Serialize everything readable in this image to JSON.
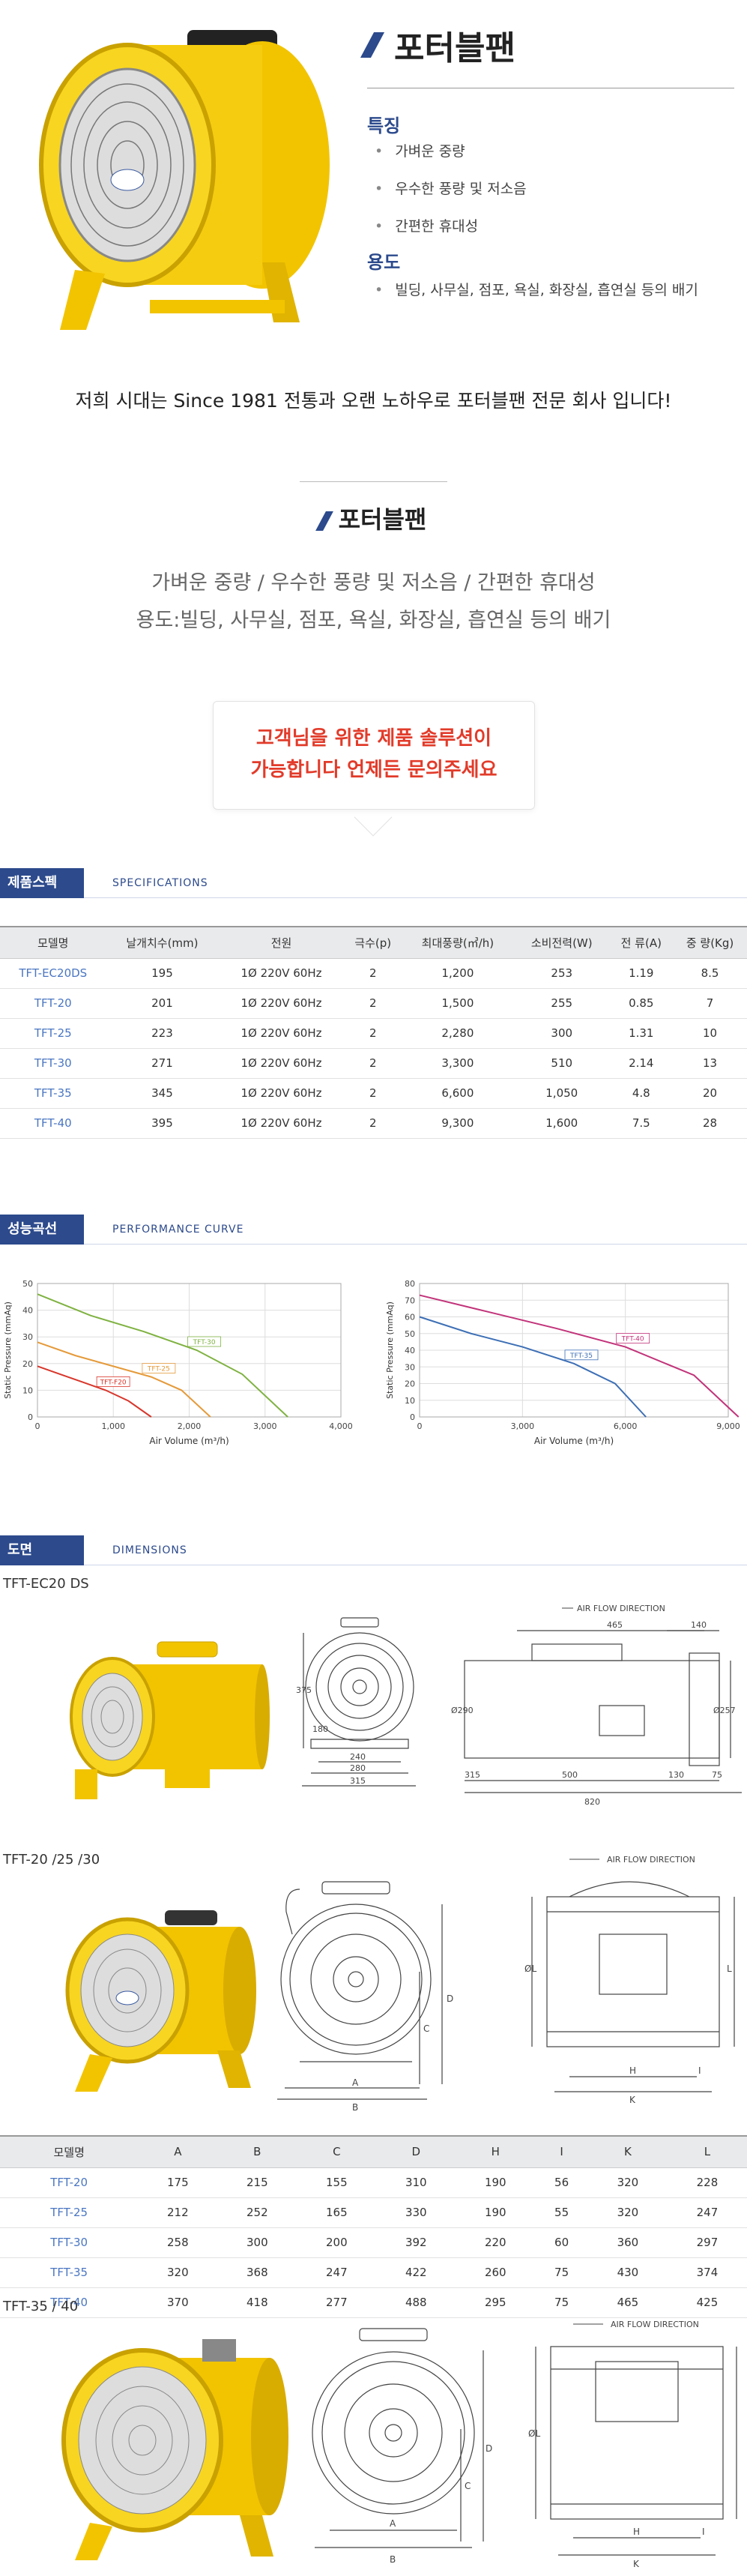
{
  "hero": {
    "title": "포터블팬",
    "features_heading": "특징",
    "features": [
      "가벼운 중량",
      "우수한 풍량 및 저소음",
      "간편한 휴대성"
    ],
    "uses_heading": "용도",
    "uses": [
      "빌딩, 사무실, 점포, 욕실, 화장실, 흡연실 등의 배기"
    ],
    "company_line": "저희 시대는  Since 1981 전통과 오랜 노하우로  포터블팬  전문 회사 입니다!"
  },
  "intro": {
    "title": "포터블팬",
    "line1": "가벼운 중량 / 우수한 풍량 및 저소음 / 간편한 휴대성",
    "line2": "용도:빌딩, 사무실, 점포, 욕실, 화장실, 흡연실 등의 배기",
    "callout1": "고객님을 위한 제품 솔루션이",
    "callout2": "가능합니다 언제든 문의주세요"
  },
  "specs": {
    "tag": "제품스펙",
    "en": "SPECIFICATIONS",
    "headers": [
      "모델명",
      "날개치수(mm)",
      "전원",
      "극수(p)",
      "최대풍량(㎥/h)",
      "소비전력(W)",
      "전 류(A)",
      "중 량(Kg)"
    ],
    "rows": [
      [
        "TFT-EC20DS",
        "195",
        "1Ø 220V 60Hz",
        "2",
        "1,200",
        "253",
        "1.19",
        "8.5"
      ],
      [
        "TFT-20",
        "201",
        "1Ø 220V 60Hz",
        "2",
        "1,500",
        "255",
        "0.85",
        "7"
      ],
      [
        "TFT-25",
        "223",
        "1Ø 220V 60Hz",
        "2",
        "2,280",
        "300",
        "1.31",
        "10"
      ],
      [
        "TFT-30",
        "271",
        "1Ø 220V 60Hz",
        "2",
        "3,300",
        "510",
        "2.14",
        "13"
      ],
      [
        "TFT-35",
        "345",
        "1Ø 220V 60Hz",
        "2",
        "6,600",
        "1,050",
        "4.8",
        "20"
      ],
      [
        "TFT-40",
        "395",
        "1Ø 220V 60Hz",
        "2",
        "9,300",
        "1,600",
        "7.5",
        "28"
      ]
    ]
  },
  "performance": {
    "tag": "성능곡선",
    "en": "PERFORMANCE CURVE"
  },
  "chart_data": [
    {
      "type": "line",
      "xlabel": "Air Volume (m³/h)",
      "ylabel": "Static Pressure (mmAq)",
      "xlim": [
        0,
        4000
      ],
      "ylim": [
        0,
        50
      ],
      "xticks": [
        "0",
        "1,000",
        "2,000",
        "3,000",
        "4,000"
      ],
      "yticks": [
        "0",
        "10",
        "20",
        "30",
        "40",
        "50"
      ],
      "grid": true,
      "series": [
        {
          "name": "TFT-F20",
          "color": "#d8362b",
          "x": [
            0,
            300,
            600,
            900,
            1200,
            1500
          ],
          "y": [
            19,
            16,
            13,
            10,
            6,
            0
          ]
        },
        {
          "name": "TFT-25",
          "color": "#e59a3a",
          "x": [
            0,
            500,
            1000,
            1500,
            1900,
            2280
          ],
          "y": [
            28,
            23,
            19,
            15,
            10,
            0
          ]
        },
        {
          "name": "TFT-30",
          "color": "#7fb241",
          "x": [
            0,
            700,
            1400,
            2100,
            2700,
            3300
          ],
          "y": [
            46,
            38,
            32,
            25,
            16,
            0
          ]
        }
      ]
    },
    {
      "type": "line",
      "xlabel": "Air Volume (m³/h)",
      "ylabel": "Static Pressure (mmAq)",
      "xlim": [
        0,
        9000
      ],
      "ylim": [
        0,
        80
      ],
      "xticks": [
        "0",
        "3,000",
        "6,000",
        "9,000"
      ],
      "yticks": [
        "0",
        "10",
        "20",
        "30",
        "40",
        "50",
        "60",
        "70",
        "80"
      ],
      "grid": true,
      "series": [
        {
          "name": "TFT-35",
          "color": "#3d6fb5",
          "x": [
            0,
            1500,
            3000,
            4500,
            5700,
            6600
          ],
          "y": [
            60,
            50,
            42,
            32,
            20,
            0
          ]
        },
        {
          "name": "TFT-40",
          "color": "#c2337a",
          "x": [
            0,
            2000,
            4000,
            6000,
            8000,
            9300
          ],
          "y": [
            73,
            63,
            53,
            42,
            25,
            0
          ]
        }
      ]
    }
  ],
  "dimensions": {
    "tag": "도면",
    "en": "DIMENSIONS",
    "group1_label": "TFT-EC20 DS",
    "group2_label": "TFT-20 /25 /30",
    "group3_label": "TFT-35 / 40",
    "airflow": "AIR FLOW DIRECTION",
    "ec20_dims": {
      "h": "375",
      "base1": "240",
      "base2": "280",
      "base3": "315",
      "left": "180",
      "d_top1": "465",
      "d_top2": "140",
      "d_side": "Ø290",
      "d_side2": "Ø257",
      "b1": "315",
      "b2": "500",
      "b3": "130",
      "b4": "75",
      "b_total": "820"
    },
    "letters": {
      "A": "A",
      "B": "B",
      "C": "C",
      "D": "D",
      "H": "H",
      "I": "I",
      "K": "K",
      "L": "L",
      "phi": "ØL"
    },
    "table_headers": [
      "모델명",
      "A",
      "B",
      "C",
      "D",
      "H",
      "I",
      "K",
      "L"
    ],
    "table_rows": [
      [
        "TFT-20",
        "175",
        "215",
        "155",
        "310",
        "190",
        "56",
        "320",
        "228"
      ],
      [
        "TFT-25",
        "212",
        "252",
        "165",
        "330",
        "190",
        "55",
        "320",
        "247"
      ],
      [
        "TFT-30",
        "258",
        "300",
        "200",
        "392",
        "220",
        "60",
        "360",
        "297"
      ],
      [
        "TFT-35",
        "320",
        "368",
        "247",
        "422",
        "260",
        "75",
        "430",
        "374"
      ],
      [
        "TFT-40",
        "370",
        "418",
        "277",
        "488",
        "295",
        "75",
        "465",
        "425"
      ]
    ]
  }
}
